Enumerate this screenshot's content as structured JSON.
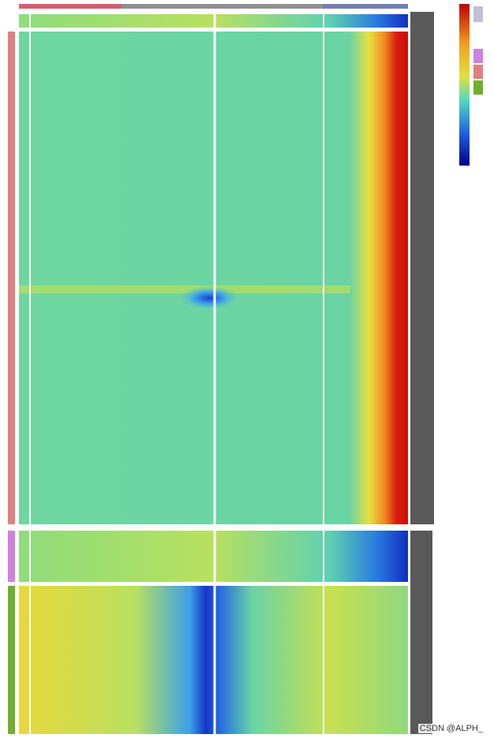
{
  "watermark": "CSDN @ALPH_"
}
